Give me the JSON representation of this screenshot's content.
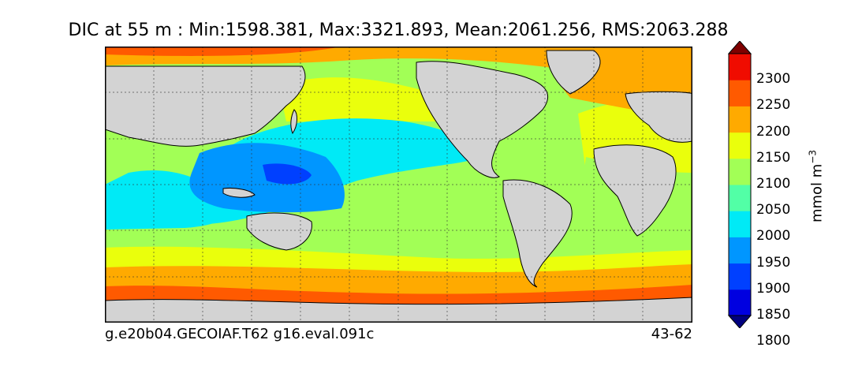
{
  "title": "DIC at 55 m : Min:1598.381, Max:3321.893, Mean:2061.256, RMS:2063.288",
  "caption_left": "g.e20b04.GECOIAF.T62 g16.eval.091c",
  "caption_right": "43-62",
  "colorbar": {
    "unit_main": "mmol m",
    "unit_exponent": "−3",
    "ticks": [
      "2300",
      "2250",
      "2200",
      "2150",
      "2100",
      "2050",
      "2000",
      "1950",
      "1900",
      "1850",
      "1800"
    ],
    "colors": [
      "#00007f",
      "#0000e0",
      "#0040ff",
      "#0096ff",
      "#00eaf6",
      "#52ffa6",
      "#a2ff56",
      "#eaff0c",
      "#ffaa00",
      "#ff5a00",
      "#f00c00",
      "#7f0000"
    ],
    "land_color": "#d3d3d3"
  }
}
